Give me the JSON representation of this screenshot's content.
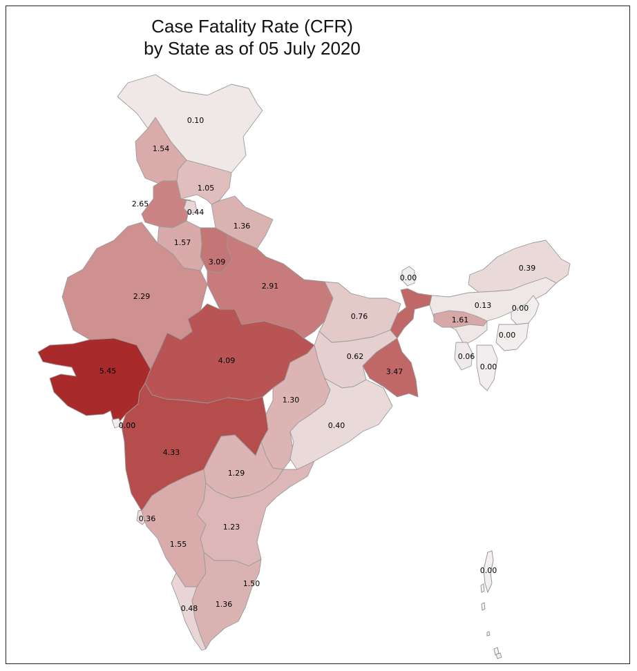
{
  "map": {
    "title_line1": "Case Fatality Rate (CFR)",
    "title_line2": "by State as of 05 July 2020",
    "color_scale": {
      "low": "#f2eeee",
      "high": "#a82a2a",
      "min": 0,
      "max": 5.45
    }
  },
  "states": [
    {
      "key": "jk",
      "cfr": "0.10"
    },
    {
      "key": "hp",
      "cfr": "1.54"
    },
    {
      "key": "pb",
      "cfr": "2.65"
    },
    {
      "key": "ch",
      "cfr": "0.44"
    },
    {
      "key": "uk",
      "cfr": "1.05"
    },
    {
      "key": "hr",
      "cfr": "1.36"
    },
    {
      "key": "dl",
      "cfr": "1.57"
    },
    {
      "key": "up",
      "cfr": "3.09"
    },
    {
      "key": "rj",
      "cfr": "2.29"
    },
    {
      "key": "up2",
      "cfr": "2.91"
    },
    {
      "key": "bh",
      "cfr": "0.76"
    },
    {
      "key": "jh",
      "cfr": "0.62"
    },
    {
      "key": "wb",
      "cfr": "3.47"
    },
    {
      "key": "sk",
      "cfr": "0.00"
    },
    {
      "key": "ar",
      "cfr": "0.39"
    },
    {
      "key": "as",
      "cfr": "0.13"
    },
    {
      "key": "ml",
      "cfr": "1.61"
    },
    {
      "key": "nl",
      "cfr": "0.00"
    },
    {
      "key": "mn",
      "cfr": "0.00"
    },
    {
      "key": "tr",
      "cfr": "0.06"
    },
    {
      "key": "mz",
      "cfr": "0.00"
    },
    {
      "key": "gj",
      "cfr": "5.45"
    },
    {
      "key": "mp",
      "cfr": "4.09"
    },
    {
      "key": "cg",
      "cfr": "1.30"
    },
    {
      "key": "od",
      "cfr": "0.40"
    },
    {
      "key": "dd",
      "cfr": "0.00"
    },
    {
      "key": "mh",
      "cfr": "4.33"
    },
    {
      "key": "tg",
      "cfr": "1.29"
    },
    {
      "key": "ga",
      "cfr": "0.36"
    },
    {
      "key": "ap",
      "cfr": "1.23"
    },
    {
      "key": "ka",
      "cfr": "1.55"
    },
    {
      "key": "py",
      "cfr": "1.50"
    },
    {
      "key": "kl",
      "cfr": "0.48"
    },
    {
      "key": "tn",
      "cfr": "1.36"
    },
    {
      "key": "an",
      "cfr": "0.00"
    }
  ]
}
